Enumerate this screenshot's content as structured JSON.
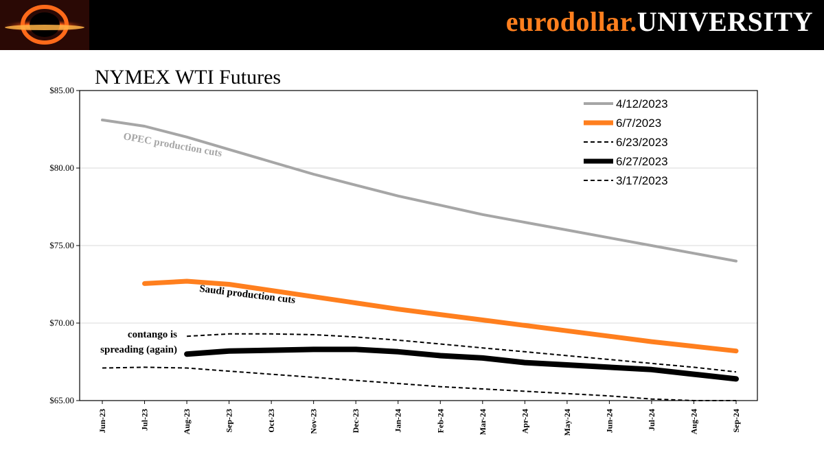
{
  "header": {
    "brand_part1": "eurodollar.",
    "brand_part2": "UNIVERSITY",
    "logo_icon": "black-hole-icon",
    "colors": {
      "bar": "#000000",
      "brand_orange": "#ff7f1e",
      "brand_white": "#ffffff"
    }
  },
  "chart_data": {
    "type": "line",
    "title": "NYMEX WTI Futures",
    "xlabel": "",
    "ylabel": "",
    "ylim": [
      65,
      85
    ],
    "yticks": [
      "$65.00",
      "$70.00",
      "$75.00",
      "$80.00",
      "$85.00"
    ],
    "ytick_values": [
      65,
      70,
      75,
      80,
      85
    ],
    "categories": [
      "Jun-23",
      "Jul-23",
      "Aug-23",
      "Sep-23",
      "Oct-23",
      "Nov-23",
      "Dec-23",
      "Jan-24",
      "Feb-24",
      "Mar-24",
      "Apr-24",
      "May-24",
      "Jun-24",
      "Jul-24",
      "Aug-24",
      "Sep-24"
    ],
    "grid": true,
    "legend_position": "top-right",
    "series": [
      {
        "name": "4/12/2023",
        "color": "#a6a6a6",
        "width": 4,
        "dash": "",
        "values": [
          83.1,
          82.7,
          82.0,
          81.2,
          80.4,
          79.6,
          78.9,
          78.2,
          77.6,
          77.0,
          76.5,
          76.0,
          75.5,
          75.0,
          74.5,
          74.0
        ]
      },
      {
        "name": "6/7/2023",
        "color": "#ff7f1e",
        "width": 7,
        "dash": "",
        "values": [
          null,
          72.55,
          72.7,
          72.5,
          72.1,
          71.7,
          71.3,
          70.9,
          70.55,
          70.2,
          69.85,
          69.5,
          69.15,
          68.8,
          68.5,
          68.2
        ]
      },
      {
        "name": "6/23/2023",
        "color": "#000000",
        "width": 2,
        "dash": "6,4",
        "values": [
          null,
          null,
          69.15,
          69.3,
          69.3,
          69.25,
          69.1,
          68.9,
          68.65,
          68.4,
          68.15,
          67.9,
          67.65,
          67.4,
          67.15,
          66.85
        ]
      },
      {
        "name": "6/27/2023",
        "color": "#000000",
        "width": 8,
        "dash": "",
        "values": [
          null,
          null,
          68.0,
          68.2,
          68.25,
          68.3,
          68.3,
          68.15,
          67.9,
          67.75,
          67.45,
          67.3,
          67.15,
          67.0,
          66.7,
          66.4
        ]
      },
      {
        "name": "3/17/2023",
        "color": "#000000",
        "width": 2,
        "dash": "6,4",
        "values": [
          67.1,
          67.15,
          67.1,
          66.9,
          66.7,
          66.5,
          66.3,
          66.1,
          65.9,
          65.75,
          65.6,
          65.45,
          65.3,
          65.1,
          64.95,
          64.8
        ]
      }
    ],
    "annotations": [
      {
        "text": "OPEC production cuts",
        "color": "#a6a6a6"
      },
      {
        "text": "Saudi production cuts",
        "color": "#000000"
      },
      {
        "text": "contango is",
        "color": "#000000"
      },
      {
        "text": "spreading (again)",
        "color": "#000000"
      }
    ]
  }
}
